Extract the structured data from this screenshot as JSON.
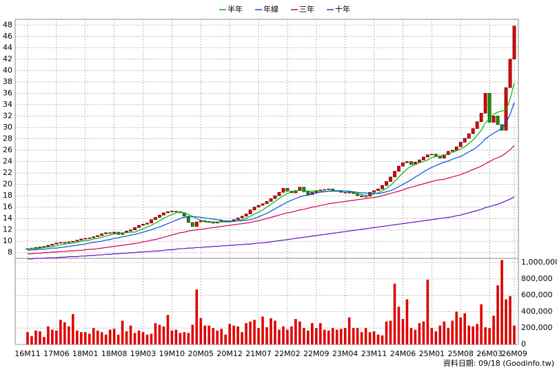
{
  "chart_data": {
    "type": "candlestick",
    "legend": "top",
    "grid": true,
    "up_color": "#e00000",
    "down_color": "#00a000",
    "categories": [
      "16M11",
      null,
      null,
      null,
      null,
      null,
      null,
      "17M06",
      null,
      null,
      null,
      null,
      null,
      null,
      "18M01",
      null,
      null,
      null,
      null,
      null,
      null,
      "18M08",
      null,
      null,
      null,
      null,
      null,
      null,
      "19M03",
      null,
      null,
      null,
      null,
      null,
      null,
      "19M10",
      null,
      null,
      null,
      null,
      null,
      null,
      "20M05",
      null,
      null,
      null,
      null,
      null,
      null,
      "20M12",
      null,
      null,
      null,
      null,
      null,
      null,
      "21M07",
      null,
      null,
      null,
      null,
      null,
      null,
      "22M02",
      null,
      null,
      null,
      null,
      null,
      null,
      "22M09",
      null,
      null,
      null,
      null,
      null,
      null,
      "23M04",
      null,
      null,
      null,
      null,
      null,
      null,
      "23M11",
      null,
      null,
      null,
      null,
      null,
      null,
      "24M06",
      null,
      null,
      null,
      null,
      null,
      null,
      "25M01",
      null,
      null,
      null,
      null,
      null,
      null,
      "25M08",
      null,
      null,
      null,
      null,
      null,
      null,
      "26M03",
      null,
      null,
      null,
      null,
      null,
      "26M09"
    ],
    "open": [
      8.6,
      8.7,
      8.8,
      8.9,
      9.0,
      9.1,
      9.3,
      9.5,
      9.7,
      9.8,
      9.8,
      9.9,
      10.0,
      10.2,
      10.4,
      10.5,
      10.6,
      10.8,
      11.0,
      11.3,
      11.5,
      11.4,
      11.6,
      11.2,
      11.5,
      11.8,
      12.0,
      12.4,
      12.8,
      13.0,
      13.2,
      13.8,
      14.2,
      14.6,
      15.0,
      15.2,
      15.3,
      15.2,
      15.0,
      14.4,
      13.3,
      12.6,
      13.4,
      13.6,
      13.5,
      13.3,
      13.2,
      13.4,
      13.6,
      13.5,
      13.6,
      13.8,
      14.1,
      14.4,
      14.8,
      15.5,
      16.0,
      16.3,
      16.6,
      17.0,
      17.5,
      18.0,
      18.6,
      19.3,
      18.8,
      18.5,
      18.9,
      19.5,
      18.7,
      18.2,
      18.6,
      18.9,
      19.0,
      19.1,
      19.2,
      18.9,
      18.8,
      18.6,
      18.6,
      18.5,
      18.4,
      18.0,
      17.8,
      17.9,
      18.6,
      18.9,
      19.2,
      19.8,
      20.5,
      21.3,
      22.3,
      23.2,
      23.8,
      24.0,
      23.5,
      23.9,
      24.3,
      24.8,
      25.2,
      25.3,
      25.0,
      24.6,
      25.2,
      25.8,
      26.0,
      26.6,
      27.4,
      28.1,
      28.9,
      29.8,
      31.0,
      32.5,
      36.0,
      30.9,
      32.0,
      30.5,
      29.5,
      37.0,
      42.0
    ],
    "close": [
      8.7,
      8.8,
      8.9,
      9.0,
      9.1,
      9.3,
      9.5,
      9.7,
      9.8,
      9.8,
      9.9,
      10.0,
      10.2,
      10.4,
      10.5,
      10.6,
      10.8,
      11.0,
      11.3,
      11.5,
      11.4,
      11.6,
      11.2,
      11.5,
      11.8,
      12.0,
      12.4,
      12.8,
      13.0,
      13.2,
      13.8,
      14.2,
      14.6,
      15.0,
      15.2,
      15.3,
      15.2,
      15.0,
      14.4,
      13.3,
      12.6,
      13.4,
      13.6,
      13.5,
      13.3,
      13.2,
      13.4,
      13.6,
      13.5,
      13.6,
      13.8,
      14.1,
      14.4,
      14.8,
      15.5,
      16.0,
      16.3,
      16.6,
      17.0,
      17.5,
      18.0,
      18.6,
      19.3,
      18.8,
      18.5,
      18.9,
      19.5,
      18.7,
      18.2,
      18.6,
      18.9,
      19.0,
      19.1,
      19.2,
      18.9,
      18.8,
      18.6,
      18.6,
      18.5,
      18.4,
      18.0,
      17.8,
      17.9,
      18.6,
      18.9,
      19.2,
      19.8,
      20.5,
      21.3,
      22.3,
      23.2,
      23.8,
      24.0,
      23.5,
      23.9,
      24.3,
      24.8,
      25.2,
      25.3,
      25.0,
      24.6,
      25.2,
      25.8,
      26.0,
      26.6,
      27.4,
      28.1,
      28.9,
      29.8,
      31.0,
      32.5,
      36.0,
      30.9,
      32.0,
      30.5,
      29.5,
      37.0,
      42.0,
      47.8
    ],
    "ylim": [
      7,
      49
    ],
    "yticks": [
      8,
      10,
      12,
      14,
      16,
      18,
      20,
      22,
      24,
      26,
      28,
      30,
      32,
      34,
      36,
      38,
      40,
      42,
      44,
      46,
      48
    ],
    "series": [
      {
        "name": "半年",
        "color": "#00b400",
        "values": [
          8.6,
          8.7,
          8.7,
          8.8,
          8.9,
          9.0,
          9.1,
          9.2,
          9.4,
          9.5,
          9.6,
          9.7,
          9.8,
          10.0,
          10.1,
          10.2,
          10.4,
          10.5,
          10.7,
          10.9,
          11.1,
          11.3,
          11.4,
          11.4,
          11.5,
          11.6,
          11.6,
          11.9,
          12.2,
          12.5,
          12.8,
          13.2,
          13.6,
          14.0,
          14.4,
          14.7,
          15.0,
          15.1,
          15.0,
          14.7,
          14.4,
          14.0,
          13.7,
          13.4,
          13.3,
          13.4,
          13.4,
          13.4,
          13.4,
          13.4,
          13.5,
          13.6,
          13.8,
          14.0,
          14.4,
          14.8,
          15.1,
          15.5,
          16.0,
          16.5,
          17.0,
          17.5,
          18.0,
          18.4,
          18.6,
          18.8,
          19.0,
          18.9,
          18.8,
          18.8,
          18.8,
          18.8,
          18.7,
          18.8,
          18.9,
          18.9,
          18.9,
          18.8,
          18.7,
          18.6,
          18.4,
          18.2,
          18.1,
          18.1,
          18.3,
          18.5,
          18.9,
          19.3,
          19.8,
          20.5,
          21.3,
          22.0,
          22.7,
          23.2,
          23.5,
          23.8,
          24.0,
          24.3,
          24.7,
          24.9,
          25.0,
          25.1,
          25.3,
          25.6,
          25.9,
          26.2,
          26.6,
          27.2,
          27.8,
          28.6,
          29.5,
          30.8,
          31.5,
          32.3,
          32.7,
          32.9,
          33.0,
          35.0,
          37.8
        ]
      },
      {
        "name": "年線",
        "color": "#0050e0",
        "values": [
          8.4,
          8.5,
          8.5,
          8.6,
          8.6,
          8.7,
          8.8,
          8.8,
          8.9,
          9.0,
          9.1,
          9.2,
          9.3,
          9.4,
          9.5,
          9.7,
          9.8,
          9.9,
          10.0,
          10.2,
          10.3,
          10.5,
          10.6,
          10.8,
          10.9,
          11.1,
          11.2,
          11.4,
          11.6,
          11.8,
          12.0,
          12.3,
          12.5,
          12.8,
          13.1,
          13.4,
          13.7,
          14.0,
          14.2,
          14.3,
          14.3,
          14.3,
          14.2,
          14.1,
          14.0,
          13.9,
          13.8,
          13.7,
          13.5,
          13.5,
          13.5,
          13.6,
          13.6,
          13.7,
          13.8,
          14.0,
          14.3,
          14.6,
          14.9,
          15.3,
          15.7,
          16.1,
          16.5,
          16.9,
          17.2,
          17.5,
          17.8,
          18.0,
          18.1,
          18.3,
          18.5,
          18.6,
          18.7,
          18.8,
          18.8,
          18.8,
          18.8,
          18.8,
          18.8,
          18.7,
          18.6,
          18.5,
          18.5,
          18.4,
          18.4,
          18.4,
          18.5,
          18.7,
          18.9,
          19.2,
          19.6,
          20.0,
          20.4,
          20.8,
          21.3,
          21.7,
          22.2,
          22.6,
          23.0,
          23.3,
          23.6,
          23.9,
          24.1,
          24.4,
          24.7,
          24.9,
          25.3,
          25.7,
          26.1,
          26.6,
          27.2,
          28.0,
          28.5,
          29.0,
          29.4,
          29.8,
          30.8,
          32.3,
          34.4
        ]
      },
      {
        "name": "三年",
        "color": "#d0004a",
        "values": [
          7.8,
          7.8,
          7.9,
          7.9,
          8.0,
          8.0,
          8.1,
          8.1,
          8.2,
          8.2,
          8.3,
          8.3,
          8.4,
          8.4,
          8.5,
          8.6,
          8.6,
          8.7,
          8.8,
          8.9,
          9.0,
          9.1,
          9.2,
          9.3,
          9.4,
          9.5,
          9.6,
          9.7,
          9.9,
          10.0,
          10.2,
          10.3,
          10.5,
          10.7,
          10.9,
          11.1,
          11.3,
          11.5,
          11.6,
          11.8,
          11.9,
          12.0,
          12.1,
          12.2,
          12.3,
          12.4,
          12.5,
          12.6,
          12.7,
          12.8,
          12.9,
          13.0,
          13.1,
          13.2,
          13.3,
          13.5,
          13.6,
          13.8,
          14.0,
          14.2,
          14.4,
          14.6,
          14.8,
          15.0,
          15.1,
          15.3,
          15.5,
          15.6,
          15.8,
          16.0,
          16.1,
          16.3,
          16.4,
          16.6,
          16.7,
          16.8,
          16.9,
          17.0,
          17.1,
          17.2,
          17.3,
          17.4,
          17.5,
          17.6,
          17.7,
          17.8,
          18.0,
          18.2,
          18.4,
          18.6,
          18.8,
          19.0,
          19.3,
          19.5,
          19.7,
          19.9,
          20.1,
          20.3,
          20.5,
          20.7,
          20.8,
          20.9,
          21.1,
          21.3,
          21.5,
          21.7,
          22.0,
          22.3,
          22.6,
          22.9,
          23.2,
          23.6,
          24.0,
          24.4,
          24.7,
          25.0,
          25.5,
          26.1,
          26.8
        ]
      },
      {
        "name": "十年",
        "color": "#6010c0",
        "values": [
          6.9,
          6.9,
          7.0,
          7.0,
          7.0,
          7.1,
          7.1,
          7.1,
          7.2,
          7.2,
          7.3,
          7.3,
          7.3,
          7.4,
          7.4,
          7.5,
          7.5,
          7.6,
          7.6,
          7.7,
          7.7,
          7.8,
          7.8,
          7.9,
          7.9,
          8.0,
          8.0,
          8.1,
          8.1,
          8.2,
          8.2,
          8.3,
          8.3,
          8.4,
          8.5,
          8.5,
          8.6,
          8.7,
          8.7,
          8.8,
          8.8,
          8.9,
          8.9,
          9.0,
          9.0,
          9.1,
          9.1,
          9.2,
          9.2,
          9.3,
          9.3,
          9.4,
          9.4,
          9.5,
          9.5,
          9.6,
          9.7,
          9.7,
          9.8,
          9.9,
          10.0,
          10.1,
          10.2,
          10.3,
          10.4,
          10.5,
          10.6,
          10.7,
          10.8,
          10.9,
          11.0,
          11.1,
          11.2,
          11.3,
          11.4,
          11.5,
          11.6,
          11.7,
          11.8,
          11.9,
          12.0,
          12.1,
          12.2,
          12.3,
          12.4,
          12.5,
          12.6,
          12.7,
          12.8,
          12.9,
          13.0,
          13.1,
          13.2,
          13.3,
          13.4,
          13.5,
          13.6,
          13.7,
          13.8,
          13.9,
          14.0,
          14.1,
          14.2,
          14.3,
          14.5,
          14.6,
          14.8,
          15.0,
          15.2,
          15.4,
          15.6,
          15.9,
          16.1,
          16.3,
          16.5,
          16.8,
          17.1,
          17.4,
          17.8
        ]
      }
    ],
    "volume": {
      "color": "#e00000",
      "values": [
        150000,
        100000,
        170000,
        160000,
        90000,
        220000,
        180000,
        170000,
        300000,
        270000,
        220000,
        370000,
        170000,
        150000,
        150000,
        130000,
        200000,
        170000,
        150000,
        120000,
        180000,
        190000,
        120000,
        290000,
        160000,
        230000,
        140000,
        170000,
        150000,
        120000,
        130000,
        260000,
        240000,
        220000,
        360000,
        170000,
        180000,
        140000,
        150000,
        140000,
        240000,
        670000,
        320000,
        230000,
        230000,
        200000,
        170000,
        190000,
        120000,
        250000,
        230000,
        220000,
        150000,
        260000,
        280000,
        300000,
        200000,
        340000,
        210000,
        320000,
        290000,
        180000,
        220000,
        180000,
        220000,
        310000,
        280000,
        200000,
        170000,
        260000,
        200000,
        260000,
        180000,
        170000,
        200000,
        180000,
        190000,
        200000,
        330000,
        200000,
        200000,
        150000,
        200000,
        150000,
        160000,
        120000,
        110000,
        280000,
        290000,
        740000,
        460000,
        310000,
        550000,
        200000,
        180000,
        260000,
        280000,
        790000,
        200000,
        160000,
        230000,
        280000,
        200000,
        290000,
        400000,
        330000,
        380000,
        230000,
        220000,
        250000,
        490000,
        210000,
        200000,
        350000,
        720000,
        1030000,
        550000,
        590000,
        230000
      ],
      "ylim": [
        0,
        1050000
      ],
      "yticks": [
        0,
        {
          "value": 200000,
          "label": "200,000"
        },
        {
          "value": 400000,
          "label": "400,000"
        },
        {
          "value": 600000,
          "label": "600,000"
        },
        {
          "value": 800000,
          "label": "800,000"
        },
        {
          "value": 1000000,
          "label": "1,000,000"
        }
      ]
    }
  },
  "footer": "資料日期: 09/18  (Goodinfo.tw)"
}
